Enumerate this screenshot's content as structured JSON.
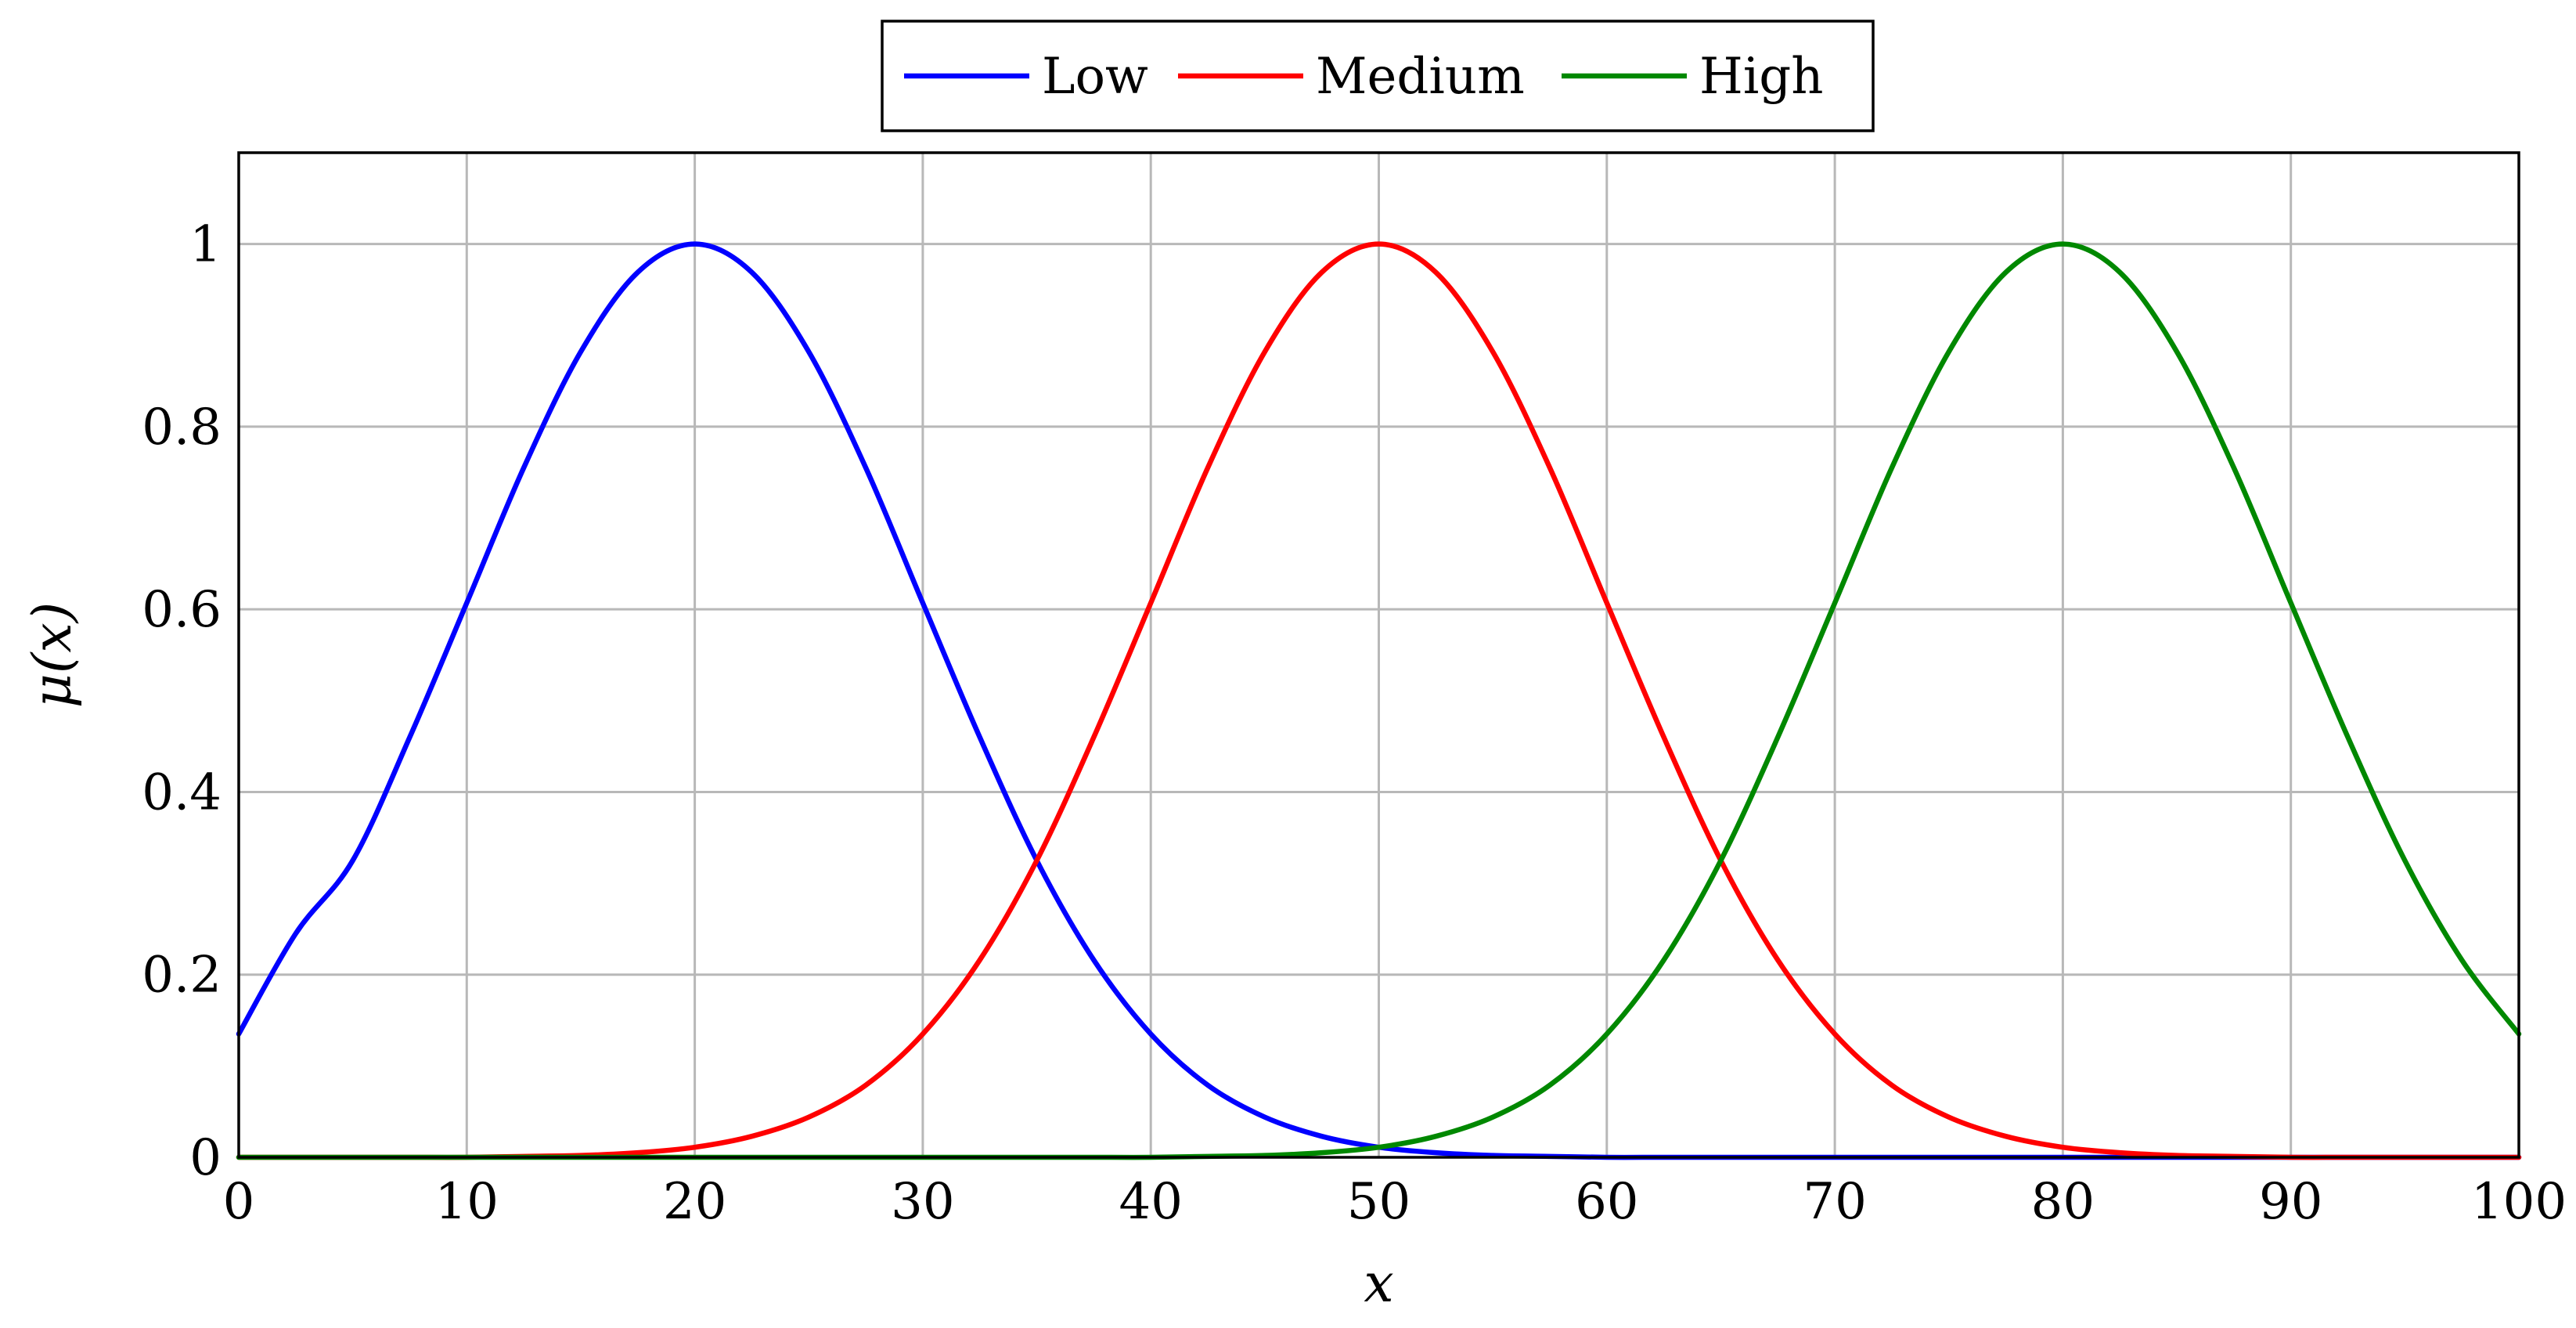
{
  "chart_data": {
    "type": "line",
    "title": "",
    "xlabel": "x",
    "ylabel": "μ(x)",
    "xlim": [
      0,
      100
    ],
    "ylim": [
      0,
      1.1
    ],
    "x_ticks": [
      "0",
      "10",
      "20",
      "30",
      "40",
      "50",
      "60",
      "70",
      "80",
      "90",
      "100"
    ],
    "y_ticks": [
      "0",
      "0.2",
      "0.4",
      "0.6",
      "0.8",
      "1"
    ],
    "grid": true,
    "legend": "top-center",
    "x": [
      0,
      2.5,
      5,
      7.5,
      10,
      12.5,
      15,
      17.5,
      20,
      22.5,
      25,
      27.5,
      30,
      32.5,
      35,
      37.5,
      40,
      42.5,
      45,
      47.5,
      50,
      52.5,
      55,
      57.5,
      60,
      62.5,
      65,
      67.5,
      70,
      72.5,
      75,
      77.5,
      80,
      82.5,
      85,
      87.5,
      90,
      92.5,
      95,
      97.5,
      100
    ],
    "series": [
      {
        "name": "Low",
        "color": "#0000ff",
        "values": [
          0.135,
          0.245,
          0.325,
          0.46,
          0.607,
          0.755,
          0.882,
          0.969,
          1.0,
          0.969,
          0.882,
          0.755,
          0.607,
          0.46,
          0.325,
          0.216,
          0.135,
          0.079,
          0.044,
          0.023,
          0.011,
          0.005,
          0.002,
          0.001,
          0.0,
          0.0,
          0.0,
          0.0,
          0.0,
          0.0,
          0.0,
          0.0,
          0.0,
          0.0,
          0.0,
          0.0,
          0.0,
          0.0,
          0.0,
          0.0,
          0.0
        ]
      },
      {
        "name": "Medium",
        "color": "#ff0000",
        "values": [
          0.0,
          0.0,
          0.0,
          0.0,
          0.0,
          0.001,
          0.002,
          0.005,
          0.011,
          0.023,
          0.044,
          0.079,
          0.135,
          0.216,
          0.325,
          0.46,
          0.607,
          0.755,
          0.882,
          0.969,
          1.0,
          0.969,
          0.882,
          0.755,
          0.607,
          0.46,
          0.325,
          0.216,
          0.135,
          0.079,
          0.044,
          0.023,
          0.011,
          0.005,
          0.002,
          0.001,
          0.0,
          0.0,
          0.0,
          0.0,
          0.0
        ]
      },
      {
        "name": "High",
        "color": "#008800",
        "values": [
          0.0,
          0.0,
          0.0,
          0.0,
          0.0,
          0.0,
          0.0,
          0.0,
          0.0,
          0.0,
          0.0,
          0.0,
          0.0,
          0.0,
          0.0,
          0.0,
          0.0,
          0.001,
          0.002,
          0.005,
          0.011,
          0.023,
          0.044,
          0.079,
          0.135,
          0.216,
          0.325,
          0.46,
          0.607,
          0.755,
          0.882,
          0.969,
          1.0,
          0.969,
          0.882,
          0.755,
          0.607,
          0.46,
          0.325,
          0.216,
          0.135
        ]
      }
    ]
  }
}
